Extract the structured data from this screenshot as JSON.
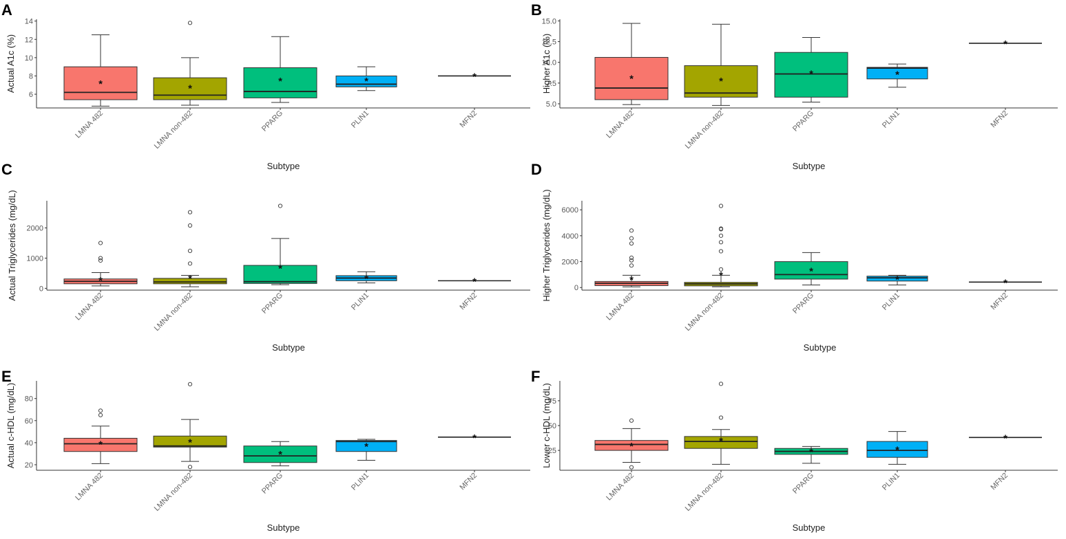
{
  "colors": {
    "LMNA 482": "#f8766d",
    "LMNA non-482": "#a3a500",
    "PPARG": "#00bf7d",
    "PLIN1": "#00b0f6",
    "MFN2": "#e76bf3"
  },
  "chart_data": [
    {
      "type": "box",
      "panel": "A",
      "title": "",
      "xlabel": "Subtype",
      "ylabel": "Actual A1c (%)",
      "categories": [
        "LMNA 482",
        "LMNA non-482",
        "PPARG",
        "PLIN1",
        "MFN2"
      ],
      "category_labels": [
        "LMNA 482",
        "LMNA non-482",
        "PPARG",
        "PLIN1",
        "MFN2"
      ],
      "ylim": [
        4.5,
        14.2
      ],
      "yticks": [
        6,
        8,
        10,
        12,
        14
      ],
      "ytick_labels": [
        "6",
        "8",
        "10",
        "12",
        "14"
      ],
      "boxes": [
        {
          "q1": 5.4,
          "median": 6.2,
          "q3": 9.0,
          "whisker_low": 4.7,
          "whisker_high": 12.5,
          "mean": 7.2,
          "outliers": []
        },
        {
          "q1": 5.4,
          "median": 5.9,
          "q3": 7.8,
          "whisker_low": 4.8,
          "whisker_high": 10.0,
          "mean": 6.7,
          "outliers": [
            13.8
          ]
        },
        {
          "q1": 5.6,
          "median": 6.3,
          "q3": 8.9,
          "whisker_low": 5.1,
          "whisker_high": 12.3,
          "mean": 7.5,
          "outliers": []
        },
        {
          "q1": 6.8,
          "median": 7.1,
          "q3": 8.0,
          "whisker_low": 6.4,
          "whisker_high": 9.0,
          "mean": 7.5,
          "outliers": []
        },
        {
          "q1": 8.0,
          "median": 8.0,
          "q3": 8.0,
          "whisker_low": 8.0,
          "whisker_high": 8.0,
          "mean": 8.0,
          "outliers": []
        }
      ]
    },
    {
      "type": "box",
      "panel": "B",
      "title": "",
      "xlabel": "Subtype",
      "ylabel": "Higher A1c (%)",
      "categories": [
        "LMNA 482",
        "LMNA non-482",
        "PPARG",
        "PLIN1",
        "MFN2"
      ],
      "category_labels": [
        "LMNA 482",
        "LMNA non-482",
        "PPARG",
        "PLIN1",
        "MFN2"
      ],
      "ylim": [
        4.5,
        15.2
      ],
      "yticks": [
        5.0,
        7.5,
        10.0,
        12.5,
        15.0
      ],
      "ytick_labels": [
        "5.0",
        "7.5",
        "10.0",
        "12.5",
        "15.0"
      ],
      "boxes": [
        {
          "q1": 5.5,
          "median": 6.9,
          "q3": 10.6,
          "whisker_low": 4.9,
          "whisker_high": 14.7,
          "mean": 8.1,
          "outliers": []
        },
        {
          "q1": 5.8,
          "median": 6.3,
          "q3": 9.6,
          "whisker_low": 4.8,
          "whisker_high": 14.6,
          "mean": 7.8,
          "outliers": []
        },
        {
          "q1": 5.8,
          "median": 8.6,
          "q3": 11.2,
          "whisker_low": 5.2,
          "whisker_high": 13.0,
          "mean": 8.7,
          "outliers": []
        },
        {
          "q1": 8.0,
          "median": 9.3,
          "q3": 9.4,
          "whisker_low": 7.0,
          "whisker_high": 9.8,
          "mean": 8.6,
          "outliers": []
        },
        {
          "q1": 12.3,
          "median": 12.3,
          "q3": 12.3,
          "whisker_low": 12.3,
          "whisker_high": 12.3,
          "mean": 12.3,
          "outliers": []
        }
      ]
    },
    {
      "type": "box",
      "panel": "C",
      "title": "",
      "xlabel": "Subtype",
      "ylabel": "Actual Triglycerides (mg/dL)",
      "categories": [
        "LMNA 482",
        "LMNA non-482",
        "PPARG",
        "PLIN1",
        "MFN2"
      ],
      "category_labels": [
        "LMNA 482",
        "LMNA non-482",
        "PPARG",
        "PLIN1",
        "MFN2"
      ],
      "ylim": [
        -60,
        2900
      ],
      "yticks": [
        0,
        1000,
        2000
      ],
      "ytick_labels": [
        "0",
        "1000",
        "2000"
      ],
      "boxes": [
        {
          "q1": 150,
          "median": 230,
          "q3": 310,
          "whisker_low": 80,
          "whisker_high": 520,
          "mean": 280,
          "outliers": [
            920,
            1000,
            1500
          ]
        },
        {
          "q1": 150,
          "median": 210,
          "q3": 330,
          "whisker_low": 50,
          "whisker_high": 430,
          "mean": 350,
          "outliers": [
            820,
            1240,
            2080,
            2520
          ]
        },
        {
          "q1": 160,
          "median": 220,
          "q3": 760,
          "whisker_low": 120,
          "whisker_high": 1650,
          "mean": 680,
          "outliers": [
            2730
          ]
        },
        {
          "q1": 250,
          "median": 340,
          "q3": 420,
          "whisker_low": 180,
          "whisker_high": 550,
          "mean": 340,
          "outliers": []
        },
        {
          "q1": 250,
          "median": 250,
          "q3": 250,
          "whisker_low": 250,
          "whisker_high": 250,
          "mean": 250,
          "outliers": []
        }
      ]
    },
    {
      "type": "box",
      "panel": "D",
      "title": "",
      "xlabel": "Subtype",
      "ylabel": "Higher Triglycerides (mg/dL)",
      "categories": [
        "LMNA 482",
        "LMNA non-482",
        "PPARG",
        "PLIN1",
        "MFN2"
      ],
      "category_labels": [
        "LMNA 482",
        "LMNA non-482",
        "PPARG",
        "PLIN1",
        "MFN2"
      ],
      "ylim": [
        -200,
        6700
      ],
      "yticks": [
        0,
        2000,
        4000,
        6000
      ],
      "ytick_labels": [
        "0",
        "2000",
        "4000",
        "6000"
      ],
      "boxes": [
        {
          "q1": 150,
          "median": 330,
          "q3": 470,
          "whisker_low": 50,
          "whisker_high": 950,
          "mean": 640,
          "outliers": [
            1700,
            2100,
            2300,
            3400,
            3800,
            4400
          ]
        },
        {
          "q1": 130,
          "median": 280,
          "q3": 400,
          "whisker_low": 60,
          "whisker_high": 950,
          "mean": 1000,
          "outliers": [
            1400,
            2800,
            3500,
            4000,
            4500,
            4550,
            6300
          ]
        },
        {
          "q1": 650,
          "median": 1000,
          "q3": 2000,
          "whisker_low": 200,
          "whisker_high": 2700,
          "mean": 1300,
          "outliers": []
        },
        {
          "q1": 500,
          "median": 750,
          "q3": 880,
          "whisker_low": 200,
          "whisker_high": 950,
          "mean": 680,
          "outliers": []
        },
        {
          "q1": 420,
          "median": 420,
          "q3": 420,
          "whisker_low": 420,
          "whisker_high": 420,
          "mean": 420,
          "outliers": []
        }
      ]
    },
    {
      "type": "box",
      "panel": "E",
      "title": "",
      "xlabel": "Subtype",
      "ylabel": "Actual c-HDL (mg/dL)",
      "categories": [
        "LMNA 482",
        "LMNA non-482",
        "PPARG",
        "PLIN1",
        "MFN2"
      ],
      "category_labels": [
        "LMNA 482",
        "LMNA non-482",
        "PPARG",
        "PLIN1",
        "MFN2"
      ],
      "ylim": [
        15,
        96
      ],
      "yticks": [
        20,
        40,
        60,
        80
      ],
      "ytick_labels": [
        "20",
        "40",
        "60",
        "80"
      ],
      "boxes": [
        {
          "q1": 32,
          "median": 39,
          "q3": 44,
          "whisker_low": 21,
          "whisker_high": 55,
          "mean": 39,
          "outliers": [
            65,
            69
          ]
        },
        {
          "q1": 36,
          "median": 37,
          "q3": 46,
          "whisker_low": 23,
          "whisker_high": 61,
          "mean": 41,
          "outliers": [
            18,
            93
          ]
        },
        {
          "q1": 22,
          "median": 28,
          "q3": 37,
          "whisker_low": 19,
          "whisker_high": 41,
          "mean": 30,
          "outliers": []
        },
        {
          "q1": 32,
          "median": 41,
          "q3": 42,
          "whisker_low": 24,
          "whisker_high": 43,
          "mean": 37,
          "outliers": []
        },
        {
          "q1": 45,
          "median": 45,
          "q3": 45,
          "whisker_low": 45,
          "whisker_high": 45,
          "mean": 45,
          "outliers": []
        }
      ]
    },
    {
      "type": "box",
      "panel": "F",
      "title": "",
      "xlabel": "Subtype",
      "ylabel": "Lower c-HDL (mg/dL)",
      "categories": [
        "LMNA 482",
        "LMNA non-482",
        "PPARG",
        "PLIN1",
        "MFN2"
      ],
      "category_labels": [
        "LMNA 482",
        "LMNA non-482",
        "PPARG",
        "PLIN1",
        "MFN2"
      ],
      "ylim": [
        5,
        95
      ],
      "yticks": [
        25,
        50,
        75
      ],
      "ytick_labels": [
        "25",
        "50",
        "75"
      ],
      "boxes": [
        {
          "q1": 25,
          "median": 31,
          "q3": 35,
          "whisker_low": 13,
          "whisker_high": 47,
          "mean": 30,
          "outliers": [
            8,
            55
          ]
        },
        {
          "q1": 27,
          "median": 34,
          "q3": 39,
          "whisker_low": 11,
          "whisker_high": 46,
          "mean": 35,
          "outliers": [
            58,
            92
          ]
        },
        {
          "q1": 21,
          "median": 24,
          "q3": 27,
          "whisker_low": 12,
          "whisker_high": 29,
          "mean": 24,
          "outliers": []
        },
        {
          "q1": 18,
          "median": 25,
          "q3": 34,
          "whisker_low": 11,
          "whisker_high": 44,
          "mean": 26,
          "outliers": []
        },
        {
          "q1": 38,
          "median": 38,
          "q3": 38,
          "whisker_low": 38,
          "whisker_high": 38,
          "mean": 38,
          "outliers": []
        }
      ]
    }
  ]
}
